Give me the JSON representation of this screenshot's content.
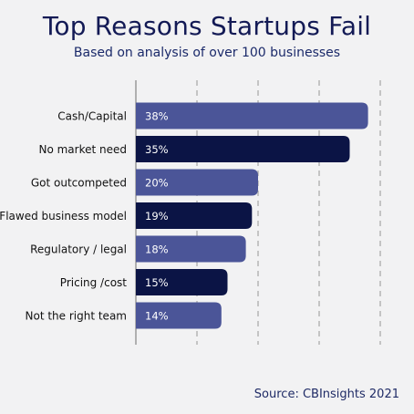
{
  "header": {
    "title": "Top Reasons Startups Fail",
    "subtitle": "Based on analysis of over 100 businesses"
  },
  "footer": {
    "source": "Source: CBInsights 2021"
  },
  "colors": {
    "bar_light": "#4b5598",
    "bar_dark": "#0b1445",
    "label_text": "#111111",
    "value_text": "#ffffff",
    "grid": "#a6a6a6",
    "axis": "#9a9a9a"
  },
  "chart_data": {
    "type": "bar",
    "orientation": "horizontal",
    "title": "Top Reasons Startups Fail",
    "subtitle": "Based on analysis of over 100 businesses",
    "categories": [
      "Cash/Capital",
      "No market need",
      "Got outcompeted",
      "Flawed business model",
      "Regulatory / legal",
      "Pricing /cost",
      "Not the right team"
    ],
    "values": [
      38,
      35,
      20,
      19,
      18,
      15,
      14
    ],
    "value_labels": [
      "38%",
      "35%",
      "20%",
      "19%",
      "18%",
      "15%",
      "14%"
    ],
    "bar_colors": [
      "#4b5598",
      "#0b1445",
      "#4b5598",
      "#0b1445",
      "#4b5598",
      "#0b1445",
      "#4b5598"
    ],
    "xlim": [
      0,
      40
    ],
    "grid": true,
    "gridlines_at": [
      0,
      10,
      20,
      30,
      40
    ],
    "xlabel": "",
    "ylabel": ""
  }
}
